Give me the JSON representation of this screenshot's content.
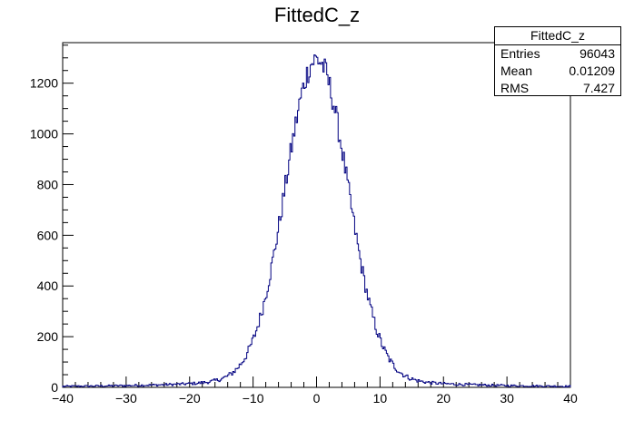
{
  "chart_data": {
    "type": "bar",
    "title": "FittedC_z",
    "xlabel": "",
    "ylabel": "",
    "xlim": [
      -40,
      40
    ],
    "ylim": [
      0,
      1360
    ],
    "x_ticks": [
      -40,
      -30,
      -20,
      -10,
      0,
      10,
      20,
      30,
      40
    ],
    "x_tick_labels": [
      "−40",
      "−30",
      "−20",
      "−10",
      "0",
      "10",
      "20",
      "30",
      "40"
    ],
    "y_ticks": [
      0,
      200,
      400,
      600,
      800,
      1000,
      1200
    ],
    "y_tick_labels": [
      "0",
      "200",
      "400",
      "600",
      "800",
      "1000",
      "1200"
    ],
    "histogram": {
      "description": "approximately Gaussian histogram of 400 bins from -40 to 40",
      "bins": 400,
      "mean": 0.01209,
      "rms": 7.427,
      "peak": 1300
    },
    "line_color": "#000080"
  },
  "stats_box": {
    "title": "FittedC_z",
    "rows": [
      {
        "label": "Entries",
        "value": "96043"
      },
      {
        "label": "Mean",
        "value": "0.01209"
      },
      {
        "label": "RMS",
        "value": "7.427"
      }
    ]
  }
}
